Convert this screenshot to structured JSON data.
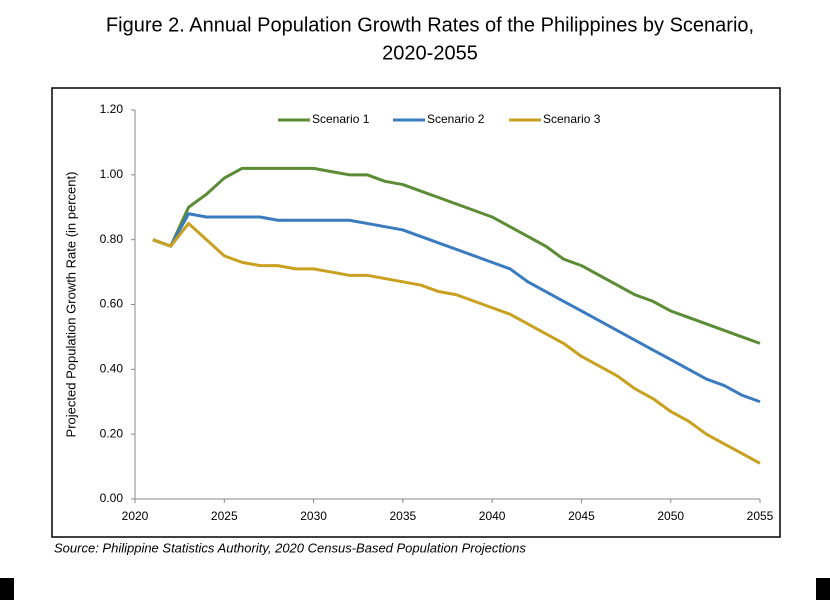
{
  "chart_data": {
    "type": "line",
    "title": [
      "Figure 2. Annual Population Growth Rates of the Philippines by Scenario,",
      "2020-2055"
    ],
    "ylabel": "Projected Population Growth Rate (in percent)",
    "source": "Source:  Philippine Statistics Authority, 2020 Census-Based Population Projections",
    "x": [
      2021,
      2022,
      2023,
      2024,
      2025,
      2026,
      2027,
      2028,
      2029,
      2030,
      2031,
      2032,
      2033,
      2034,
      2035,
      2036,
      2037,
      2038,
      2039,
      2040,
      2041,
      2042,
      2043,
      2044,
      2045,
      2046,
      2047,
      2048,
      2049,
      2050,
      2051,
      2052,
      2053,
      2054,
      2055
    ],
    "series": [
      {
        "name": "Scenario 1",
        "color": "#5b8c35",
        "values": [
          0.8,
          0.78,
          0.9,
          0.94,
          0.99,
          1.02,
          1.02,
          1.02,
          1.02,
          1.02,
          1.01,
          1.0,
          1.0,
          0.98,
          0.97,
          0.95,
          0.93,
          0.91,
          0.89,
          0.87,
          0.84,
          0.81,
          0.78,
          0.74,
          0.72,
          0.69,
          0.66,
          0.63,
          0.61,
          0.58,
          0.56,
          0.54,
          0.52,
          0.5,
          0.48
        ]
      },
      {
        "name": "Scenario 2",
        "color": "#3a7bbf",
        "values": [
          0.8,
          0.78,
          0.88,
          0.87,
          0.87,
          0.87,
          0.87,
          0.86,
          0.86,
          0.86,
          0.86,
          0.86,
          0.85,
          0.84,
          0.83,
          0.81,
          0.79,
          0.77,
          0.75,
          0.73,
          0.71,
          0.67,
          0.64,
          0.61,
          0.58,
          0.55,
          0.52,
          0.49,
          0.46,
          0.43,
          0.4,
          0.37,
          0.35,
          0.32,
          0.3
        ]
      },
      {
        "name": "Scenario 3",
        "color": "#c9a020",
        "values": [
          0.8,
          0.78,
          0.85,
          0.8,
          0.75,
          0.73,
          0.72,
          0.72,
          0.71,
          0.71,
          0.7,
          0.69,
          0.69,
          0.68,
          0.67,
          0.66,
          0.64,
          0.63,
          0.61,
          0.59,
          0.57,
          0.54,
          0.51,
          0.48,
          0.44,
          0.41,
          0.38,
          0.34,
          0.31,
          0.27,
          0.24,
          0.2,
          0.17,
          0.14,
          0.11
        ]
      }
    ],
    "xlim": [
      2020,
      2055
    ],
    "xticks": [
      2020,
      2025,
      2030,
      2035,
      2040,
      2045,
      2050,
      2055
    ],
    "ylim": [
      0,
      1.2
    ],
    "yticks": [
      {
        "value": 0,
        "label": "0.00"
      },
      {
        "value": 0.2,
        "label": "0.20"
      },
      {
        "value": 0.4,
        "label": "0.40"
      },
      {
        "value": 0.6,
        "label": "0.60"
      },
      {
        "value": 0.8,
        "label": "0.80"
      },
      {
        "value": 1.0,
        "label": "1.00"
      },
      {
        "value": 1.2,
        "label": "1.20"
      }
    ],
    "legend": "top",
    "grid": false
  }
}
